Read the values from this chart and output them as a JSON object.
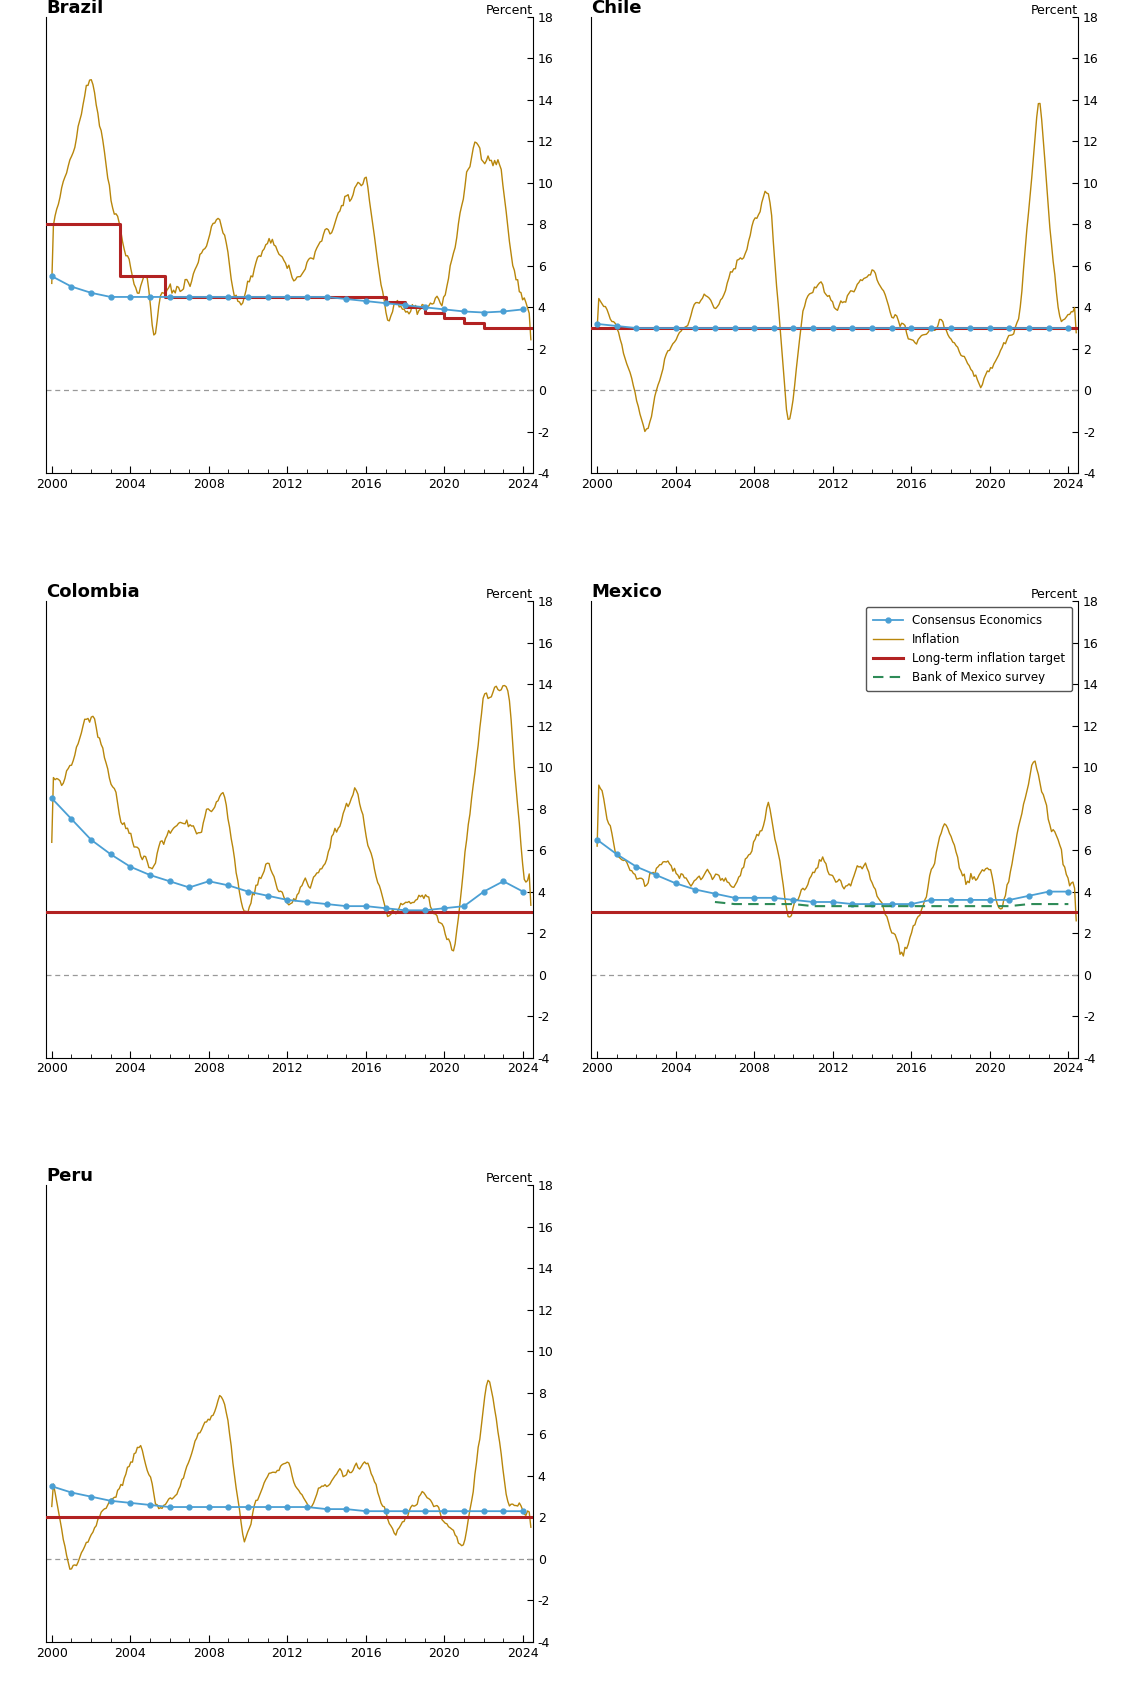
{
  "countries": [
    "Brazil",
    "Chile",
    "Colombia",
    "Mexico",
    "Peru"
  ],
  "ylim": [
    -4,
    18
  ],
  "yticks": [
    -4,
    -2,
    0,
    2,
    4,
    6,
    8,
    10,
    12,
    14,
    16,
    18
  ],
  "xlim_start": 1999.7,
  "xlim_end": 2024.5,
  "xticks": [
    2000,
    2004,
    2008,
    2012,
    2016,
    2020,
    2024
  ],
  "target_color": "#b22222",
  "inflation_color": "#b8860b",
  "consensus_color": "#4a9fd4",
  "mexico_survey_color": "#2e8b57",
  "zero_line_color": "#999999",
  "title_fontsize": 13,
  "axis_fontsize": 9,
  "percent_label": "Percent",
  "brazil_target_x": [
    1999.7,
    2003.5,
    2003.5,
    2005.75,
    2005.75,
    2017.0,
    2017.0,
    2018.0,
    2018.0,
    2019.0,
    2019.0,
    2020.0,
    2020.0,
    2021.0,
    2021.0,
    2022.0,
    2022.0,
    2024.5
  ],
  "brazil_target_y": [
    8.0,
    8.0,
    5.5,
    5.5,
    4.5,
    4.5,
    4.25,
    4.25,
    4.0,
    4.0,
    3.75,
    3.75,
    3.5,
    3.5,
    3.25,
    3.25,
    3.0,
    3.0
  ],
  "chile_target": 3.0,
  "colombia_target": 3.0,
  "mexico_target": 3.0,
  "peru_target": 2.0,
  "brazil_consensus_x": [
    2000.0,
    2001.0,
    2002.0,
    2003.0,
    2004.0,
    2005.0,
    2006.0,
    2007.0,
    2008.0,
    2009.0,
    2010.0,
    2011.0,
    2012.0,
    2013.0,
    2014.0,
    2015.0,
    2016.0,
    2017.0,
    2018.0,
    2019.0,
    2020.0,
    2021.0,
    2022.0,
    2023.0,
    2024.0
  ],
  "brazil_consensus_y": [
    5.5,
    5.0,
    4.7,
    4.5,
    4.5,
    4.5,
    4.5,
    4.5,
    4.5,
    4.5,
    4.5,
    4.5,
    4.5,
    4.5,
    4.5,
    4.4,
    4.3,
    4.2,
    4.1,
    4.0,
    3.9,
    3.8,
    3.75,
    3.8,
    3.9
  ],
  "chile_consensus_x": [
    2000.0,
    2001.0,
    2002.0,
    2003.0,
    2004.0,
    2005.0,
    2006.0,
    2007.0,
    2008.0,
    2009.0,
    2010.0,
    2011.0,
    2012.0,
    2013.0,
    2014.0,
    2015.0,
    2016.0,
    2017.0,
    2018.0,
    2019.0,
    2020.0,
    2021.0,
    2022.0,
    2023.0,
    2024.0
  ],
  "chile_consensus_y": [
    3.2,
    3.1,
    3.0,
    3.0,
    3.0,
    3.0,
    3.0,
    3.0,
    3.0,
    3.0,
    3.0,
    3.0,
    3.0,
    3.0,
    3.0,
    3.0,
    3.0,
    3.0,
    3.0,
    3.0,
    3.0,
    3.0,
    3.0,
    3.0,
    3.0
  ],
  "colombia_consensus_x": [
    2000.0,
    2001.0,
    2002.0,
    2003.0,
    2004.0,
    2005.0,
    2006.0,
    2007.0,
    2008.0,
    2009.0,
    2010.0,
    2011.0,
    2012.0,
    2013.0,
    2014.0,
    2015.0,
    2016.0,
    2017.0,
    2018.0,
    2019.0,
    2020.0,
    2021.0,
    2022.0,
    2023.0,
    2024.0
  ],
  "colombia_consensus_y": [
    8.5,
    7.5,
    6.5,
    5.8,
    5.2,
    4.8,
    4.5,
    4.2,
    4.5,
    4.3,
    4.0,
    3.8,
    3.6,
    3.5,
    3.4,
    3.3,
    3.3,
    3.2,
    3.1,
    3.1,
    3.2,
    3.3,
    4.0,
    4.5,
    4.0
  ],
  "mexico_consensus_x": [
    2000.0,
    2001.0,
    2002.0,
    2003.0,
    2004.0,
    2005.0,
    2006.0,
    2007.0,
    2008.0,
    2009.0,
    2010.0,
    2011.0,
    2012.0,
    2013.0,
    2014.0,
    2015.0,
    2016.0,
    2017.0,
    2018.0,
    2019.0,
    2020.0,
    2021.0,
    2022.0,
    2023.0,
    2024.0
  ],
  "mexico_consensus_y": [
    6.5,
    5.8,
    5.2,
    4.8,
    4.4,
    4.1,
    3.9,
    3.7,
    3.7,
    3.7,
    3.6,
    3.5,
    3.5,
    3.4,
    3.4,
    3.4,
    3.4,
    3.6,
    3.6,
    3.6,
    3.6,
    3.6,
    3.8,
    4.0,
    4.0
  ],
  "mexico_survey_x": [
    2006.0,
    2007.0,
    2008.0,
    2009.0,
    2010.0,
    2011.0,
    2012.0,
    2013.0,
    2014.0,
    2015.0,
    2016.0,
    2017.0,
    2018.0,
    2019.0,
    2020.0,
    2021.0,
    2022.0,
    2023.0,
    2024.0
  ],
  "mexico_survey_y": [
    3.5,
    3.4,
    3.4,
    3.4,
    3.4,
    3.3,
    3.3,
    3.3,
    3.3,
    3.3,
    3.3,
    3.3,
    3.3,
    3.3,
    3.3,
    3.3,
    3.4,
    3.4,
    3.4
  ],
  "peru_consensus_x": [
    2000.0,
    2001.0,
    2002.0,
    2003.0,
    2004.0,
    2005.0,
    2006.0,
    2007.0,
    2008.0,
    2009.0,
    2010.0,
    2011.0,
    2012.0,
    2013.0,
    2014.0,
    2015.0,
    2016.0,
    2017.0,
    2018.0,
    2019.0,
    2020.0,
    2021.0,
    2022.0,
    2023.0,
    2024.0
  ],
  "peru_consensus_y": [
    3.5,
    3.2,
    3.0,
    2.8,
    2.7,
    2.6,
    2.5,
    2.5,
    2.5,
    2.5,
    2.5,
    2.5,
    2.5,
    2.5,
    2.4,
    2.4,
    2.3,
    2.3,
    2.3,
    2.3,
    2.3,
    2.3,
    2.3,
    2.3,
    2.3
  ],
  "legend_labels": [
    "Consensus Economics",
    "Inflation",
    "Long-term inflation target",
    "Bank of Mexico survey"
  ]
}
